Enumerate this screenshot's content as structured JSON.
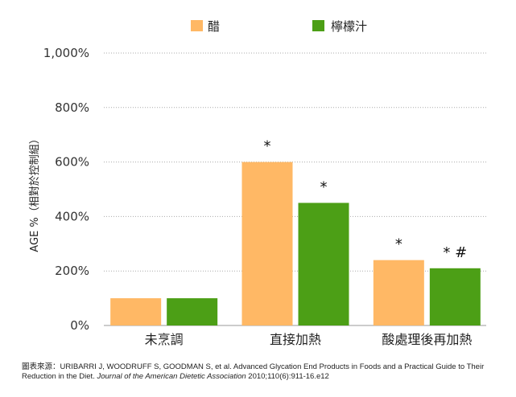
{
  "chart_data": {
    "type": "bar",
    "title": "",
    "xlabel": "",
    "ylabel": "AGE %（相對於控制組）",
    "ylim": [
      0,
      1000
    ],
    "yticks": [
      0,
      200,
      400,
      600,
      800,
      1000
    ],
    "ytick_labels": [
      "0%",
      "200%",
      "400%",
      "600%",
      "800%",
      "1,000%"
    ],
    "grid": "horizontal-dotted",
    "legend": "top-center",
    "categories": [
      "未烹調",
      "直接加熱",
      "酸處理後再加熱"
    ],
    "series": [
      {
        "name": "醋",
        "color": "#ffb865",
        "values": [
          100,
          600,
          240
        ],
        "annotations": [
          "",
          "*",
          "*"
        ]
      },
      {
        "name": "檸檬汁",
        "color": "#4c9f16",
        "values": [
          100,
          450,
          210
        ],
        "annotations": [
          "",
          "*",
          "* #"
        ]
      }
    ]
  },
  "source": {
    "prefix": "圖表來源：URIBARRI J, WOODRUFF S, GOODMAN S, et al. Advanced Glycation End Products in Foods and a Practical Guide to Their Reduction in the Diet. ",
    "journal": "Journal of the American Dietetic Association",
    "suffix": " 2010;110(6):911-16.e12"
  }
}
